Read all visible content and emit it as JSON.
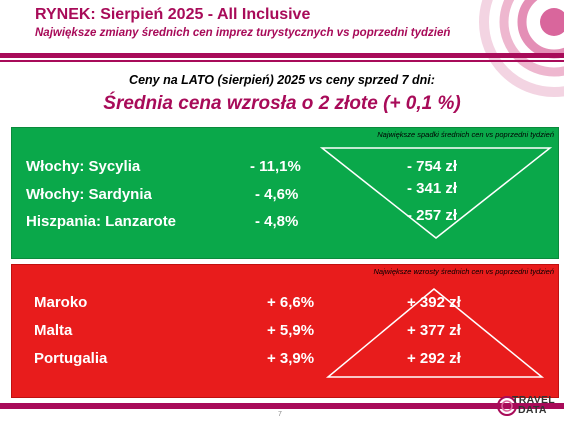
{
  "header": {
    "title": "RYNEK: Sierpień 2025 - All Inclusive",
    "subtitle": "Największe zmiany średnich cen imprez turystycznych vs poprzedni tydzień"
  },
  "comparison_text": "Ceny na LATO (sierpień) 2025 vs ceny sprzed 7 dni:",
  "average_text": "Średnia cena wzrosła o 2 złote (+ 0,1 %)",
  "decreases": {
    "note": "Największe spadki średnich cen vs poprzedni tydzień",
    "color": "#0aa84a",
    "rows": [
      {
        "destination": "Włochy: Sycylia",
        "percent": "- 11,1%",
        "amount": "- 754 zł"
      },
      {
        "destination": "Włochy: Sardynia",
        "percent": "- 4,6%",
        "amount": "- 341 zł"
      },
      {
        "destination": "Hiszpania: Lanzarote",
        "percent": "- 4,8%",
        "amount": "- 257 zł"
      }
    ]
  },
  "increases": {
    "note": "Największe wzrosty średnich cen vs poprzedni tydzień",
    "color": "#e81c1c",
    "rows": [
      {
        "destination": "Maroko",
        "percent": "+ 6,6%",
        "amount": "+ 392 zł"
      },
      {
        "destination": "Malta",
        "percent": "+ 5,9%",
        "amount": "+ 377 zł"
      },
      {
        "destination": "Portugalia",
        "percent": "+ 3,9%",
        "amount": "+ 292 zł"
      }
    ]
  },
  "footer": {
    "page_number": "7",
    "logo_line1": "TRAVEL",
    "logo_line2": "DATA"
  },
  "colors": {
    "brand": "#a80b59"
  }
}
